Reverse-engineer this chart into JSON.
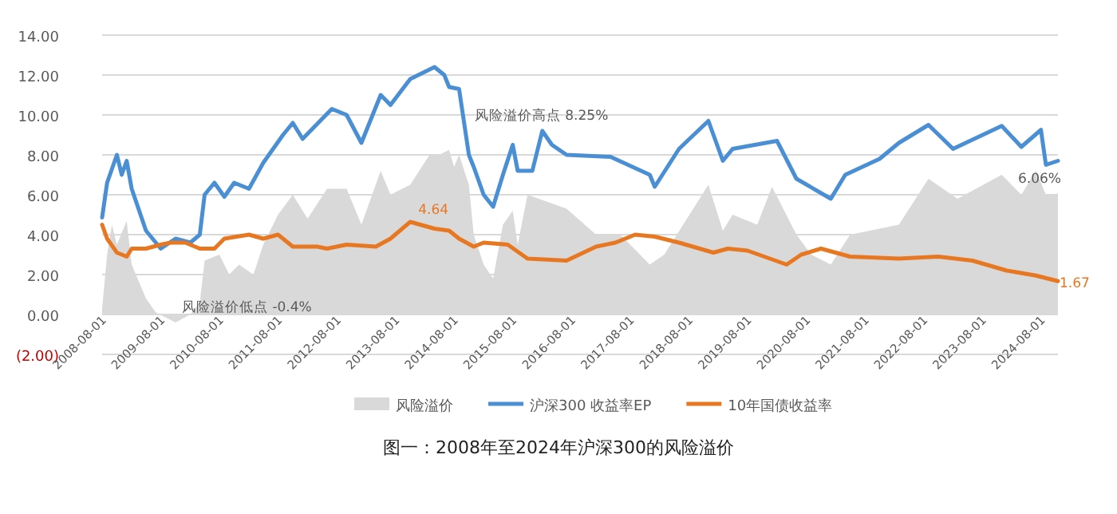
{
  "chart_data": {
    "type": "line",
    "title": "图一：2008年至2024年沪深300的风险溢价",
    "xlim": [
      "2008-08-01",
      "2024-11-15"
    ],
    "xticks": [
      {
        "value": "2008-08-01",
        "label": "2008-08-01"
      },
      {
        "value": "2009-08-01",
        "label": "2009-08-01"
      },
      {
        "value": "2010-08-01",
        "label": "2010-08-01"
      },
      {
        "value": "2011-08-01",
        "label": "2011-08-01"
      },
      {
        "value": "2012-08-01",
        "label": "2012-08-01"
      },
      {
        "value": "2013-08-01",
        "label": "2013-08-01"
      },
      {
        "value": "2014-08-01",
        "label": "2014-08-01"
      },
      {
        "value": "2015-08-01",
        "label": "2015-08-01"
      },
      {
        "value": "2016-08-01",
        "label": "2016-08-01"
      },
      {
        "value": "2017-08-01",
        "label": "2017-08-01"
      },
      {
        "value": "2018-08-01",
        "label": "2018-08-01"
      },
      {
        "value": "2019-08-01",
        "label": "2019-08-01"
      },
      {
        "value": "2020-08-01",
        "label": "2020-08-01"
      },
      {
        "value": "2021-08-01",
        "label": "2021-08-01"
      },
      {
        "value": "2022-08-01",
        "label": "2022-08-01"
      },
      {
        "value": "2023-08-01",
        "label": "2023-08-01"
      },
      {
        "value": "2024-08-01",
        "label": "2024-08-01"
      }
    ],
    "ylim": [
      -2,
      14
    ],
    "yticks": [
      {
        "value": -2,
        "label": "(2.00)"
      },
      {
        "value": 0,
        "label": "0.00"
      },
      {
        "value": 2,
        "label": "2.00"
      },
      {
        "value": 4,
        "label": "4.00"
      },
      {
        "value": 6,
        "label": "6.00"
      },
      {
        "value": 8,
        "label": "8.00"
      },
      {
        "value": 10,
        "label": "10.00"
      },
      {
        "value": 12,
        "label": "12.00"
      },
      {
        "value": 14,
        "label": "14.00"
      }
    ],
    "grid": "y",
    "legend": "bottom",
    "series": [
      {
        "name": "风险溢价",
        "type": "area",
        "color": "#d9d9d9",
        "x": [
          "2008-08-01",
          "2008-09-01",
          "2008-10-01",
          "2008-11-01",
          "2009-01-01",
          "2009-02-01",
          "2009-05-01",
          "2009-07-01",
          "2009-11-01",
          "2010-02-01",
          "2010-04-01",
          "2010-05-01",
          "2010-08-01",
          "2010-10-01",
          "2010-12-01",
          "2011-03-01",
          "2011-05-01",
          "2011-08-01",
          "2011-11-01",
          "2012-02-01",
          "2012-06-01",
          "2012-10-01",
          "2013-01-01",
          "2013-05-01",
          "2013-07-01",
          "2013-11-01",
          "2014-03-01",
          "2014-05-01",
          "2014-07-01",
          "2014-08-01",
          "2014-09-01",
          "2014-11-01",
          "2014-12-01",
          "2015-02-01",
          "2015-04-01",
          "2015-06-01",
          "2015-08-01",
          "2015-09-01",
          "2015-11-01",
          "2016-07-01",
          "2017-01-01",
          "2017-06-01",
          "2017-12-01",
          "2018-03-01",
          "2018-12-01",
          "2019-03-01",
          "2019-05-01",
          "2019-10-01",
          "2020-01-01",
          "2020-06-01",
          "2020-09-01",
          "2021-01-01",
          "2021-05-01",
          "2022-03-01",
          "2022-09-01",
          "2023-03-01",
          "2023-12-01",
          "2024-04-01",
          "2024-07-01",
          "2024-09-01",
          "2024-11-15"
        ],
        "values": [
          0.3,
          3.0,
          4.5,
          3.5,
          4.7,
          2.5,
          0.8,
          0.1,
          -0.4,
          0.0,
          0.6,
          2.7,
          3.0,
          2.0,
          2.5,
          2.0,
          3.5,
          5.0,
          6.0,
          4.8,
          6.3,
          6.3,
          4.5,
          7.2,
          6.0,
          6.5,
          8.0,
          8.0,
          8.25,
          7.4,
          8.0,
          6.5,
          4.0,
          2.5,
          1.8,
          4.5,
          5.2,
          3.5,
          6.0,
          5.3,
          4.0,
          4.0,
          2.5,
          3.0,
          6.5,
          4.2,
          5.0,
          4.5,
          6.4,
          4.0,
          3.0,
          2.5,
          4.0,
          4.5,
          6.8,
          5.8,
          7.0,
          6.0,
          7.2,
          6.0,
          6.06
        ]
      },
      {
        "name": "沪深300 收益率EP",
        "color": "#4a8fd4",
        "x": [
          "2008-08-01",
          "2008-09-01",
          "2008-11-01",
          "2008-12-01",
          "2009-01-01",
          "2009-02-01",
          "2009-05-01",
          "2009-08-01",
          "2009-11-01",
          "2010-02-01",
          "2010-04-01",
          "2010-05-01",
          "2010-07-01",
          "2010-09-01",
          "2010-11-01",
          "2011-02-01",
          "2011-05-01",
          "2011-09-01",
          "2011-11-01",
          "2012-01-01",
          "2012-05-01",
          "2012-07-01",
          "2012-10-01",
          "2013-01-01",
          "2013-05-01",
          "2013-07-01",
          "2013-11-01",
          "2014-04-01",
          "2014-06-01",
          "2014-07-01",
          "2014-09-01",
          "2014-11-01",
          "2014-12-01",
          "2015-02-01",
          "2015-04-01",
          "2015-06-01",
          "2015-08-01",
          "2015-09-01",
          "2015-12-01",
          "2016-02-01",
          "2016-04-01",
          "2016-07-01",
          "2017-04-01",
          "2017-12-01",
          "2018-01-01",
          "2018-06-01",
          "2018-12-01",
          "2019-03-01",
          "2019-05-01",
          "2020-02-01",
          "2020-06-01",
          "2021-01-01",
          "2021-04-01",
          "2021-11-01",
          "2022-03-01",
          "2022-09-01",
          "2023-02-01",
          "2023-12-01",
          "2024-04-01",
          "2024-08-01",
          "2024-09-01",
          "2024-11-15"
        ],
        "values": [
          4.86,
          6.6,
          8.0,
          7.0,
          7.7,
          6.3,
          4.2,
          3.3,
          3.8,
          3.6,
          4.0,
          6.0,
          6.6,
          5.9,
          6.6,
          6.3,
          7.6,
          9.0,
          9.6,
          8.8,
          9.8,
          10.3,
          10.0,
          8.6,
          11.0,
          10.5,
          11.8,
          12.4,
          12.0,
          11.4,
          11.3,
          8.0,
          7.4,
          6.0,
          5.4,
          7.0,
          8.5,
          7.2,
          7.2,
          9.2,
          8.5,
          8.0,
          7.9,
          7.0,
          6.4,
          8.3,
          9.7,
          7.7,
          8.3,
          8.7,
          6.8,
          5.8,
          7.0,
          7.8,
          8.6,
          9.5,
          8.3,
          9.45,
          8.4,
          9.25,
          7.5,
          7.7
        ]
      },
      {
        "name": "10年国债收益率",
        "color": "#e87722",
        "x": [
          "2008-08-01",
          "2008-09-01",
          "2008-11-01",
          "2009-01-01",
          "2009-02-01",
          "2009-05-01",
          "2009-08-01",
          "2009-10-01",
          "2010-01-01",
          "2010-04-01",
          "2010-07-01",
          "2010-09-01",
          "2011-02-01",
          "2011-05-01",
          "2011-08-01",
          "2011-11-01",
          "2012-04-01",
          "2012-06-01",
          "2012-10-01",
          "2013-04-01",
          "2013-07-01",
          "2013-11-01",
          "2014-04-01",
          "2014-07-01",
          "2014-09-01",
          "2014-12-01",
          "2015-02-01",
          "2015-07-01",
          "2015-11-01",
          "2016-07-01",
          "2017-01-01",
          "2017-05-01",
          "2017-09-01",
          "2018-01-01",
          "2018-06-01",
          "2019-01-01",
          "2019-04-01",
          "2019-08-01",
          "2020-04-01",
          "2020-07-01",
          "2020-11-01",
          "2021-05-01",
          "2022-03-01",
          "2022-11-01",
          "2023-06-01",
          "2024-01-01",
          "2024-07-01",
          "2024-11-15"
        ],
        "values": [
          4.5,
          3.8,
          3.1,
          2.9,
          3.3,
          3.3,
          3.5,
          3.6,
          3.6,
          3.3,
          3.3,
          3.8,
          4.0,
          3.8,
          4.0,
          3.4,
          3.4,
          3.3,
          3.5,
          3.4,
          3.8,
          4.64,
          4.3,
          4.2,
          3.8,
          3.4,
          3.6,
          3.5,
          2.8,
          2.7,
          3.4,
          3.6,
          4.0,
          3.9,
          3.6,
          3.1,
          3.3,
          3.2,
          2.5,
          3.0,
          3.3,
          2.9,
          2.8,
          2.9,
          2.7,
          2.2,
          1.95,
          1.67
        ]
      }
    ],
    "annotations": [
      {
        "text": "风险溢价高点 8.25%",
        "x": "2014-07-01",
        "y": 8.25
      },
      {
        "text": "风险溢价低点 -0.4%",
        "x": "2009-11-01",
        "y": -0.4
      },
      {
        "text": "4.64",
        "x": "2013-11-01",
        "y": 4.64
      },
      {
        "text": "6.06%",
        "x": "2024-11-15",
        "y": 6.06
      },
      {
        "text": "1.67",
        "x": "2024-11-15",
        "y": 1.67
      }
    ]
  }
}
